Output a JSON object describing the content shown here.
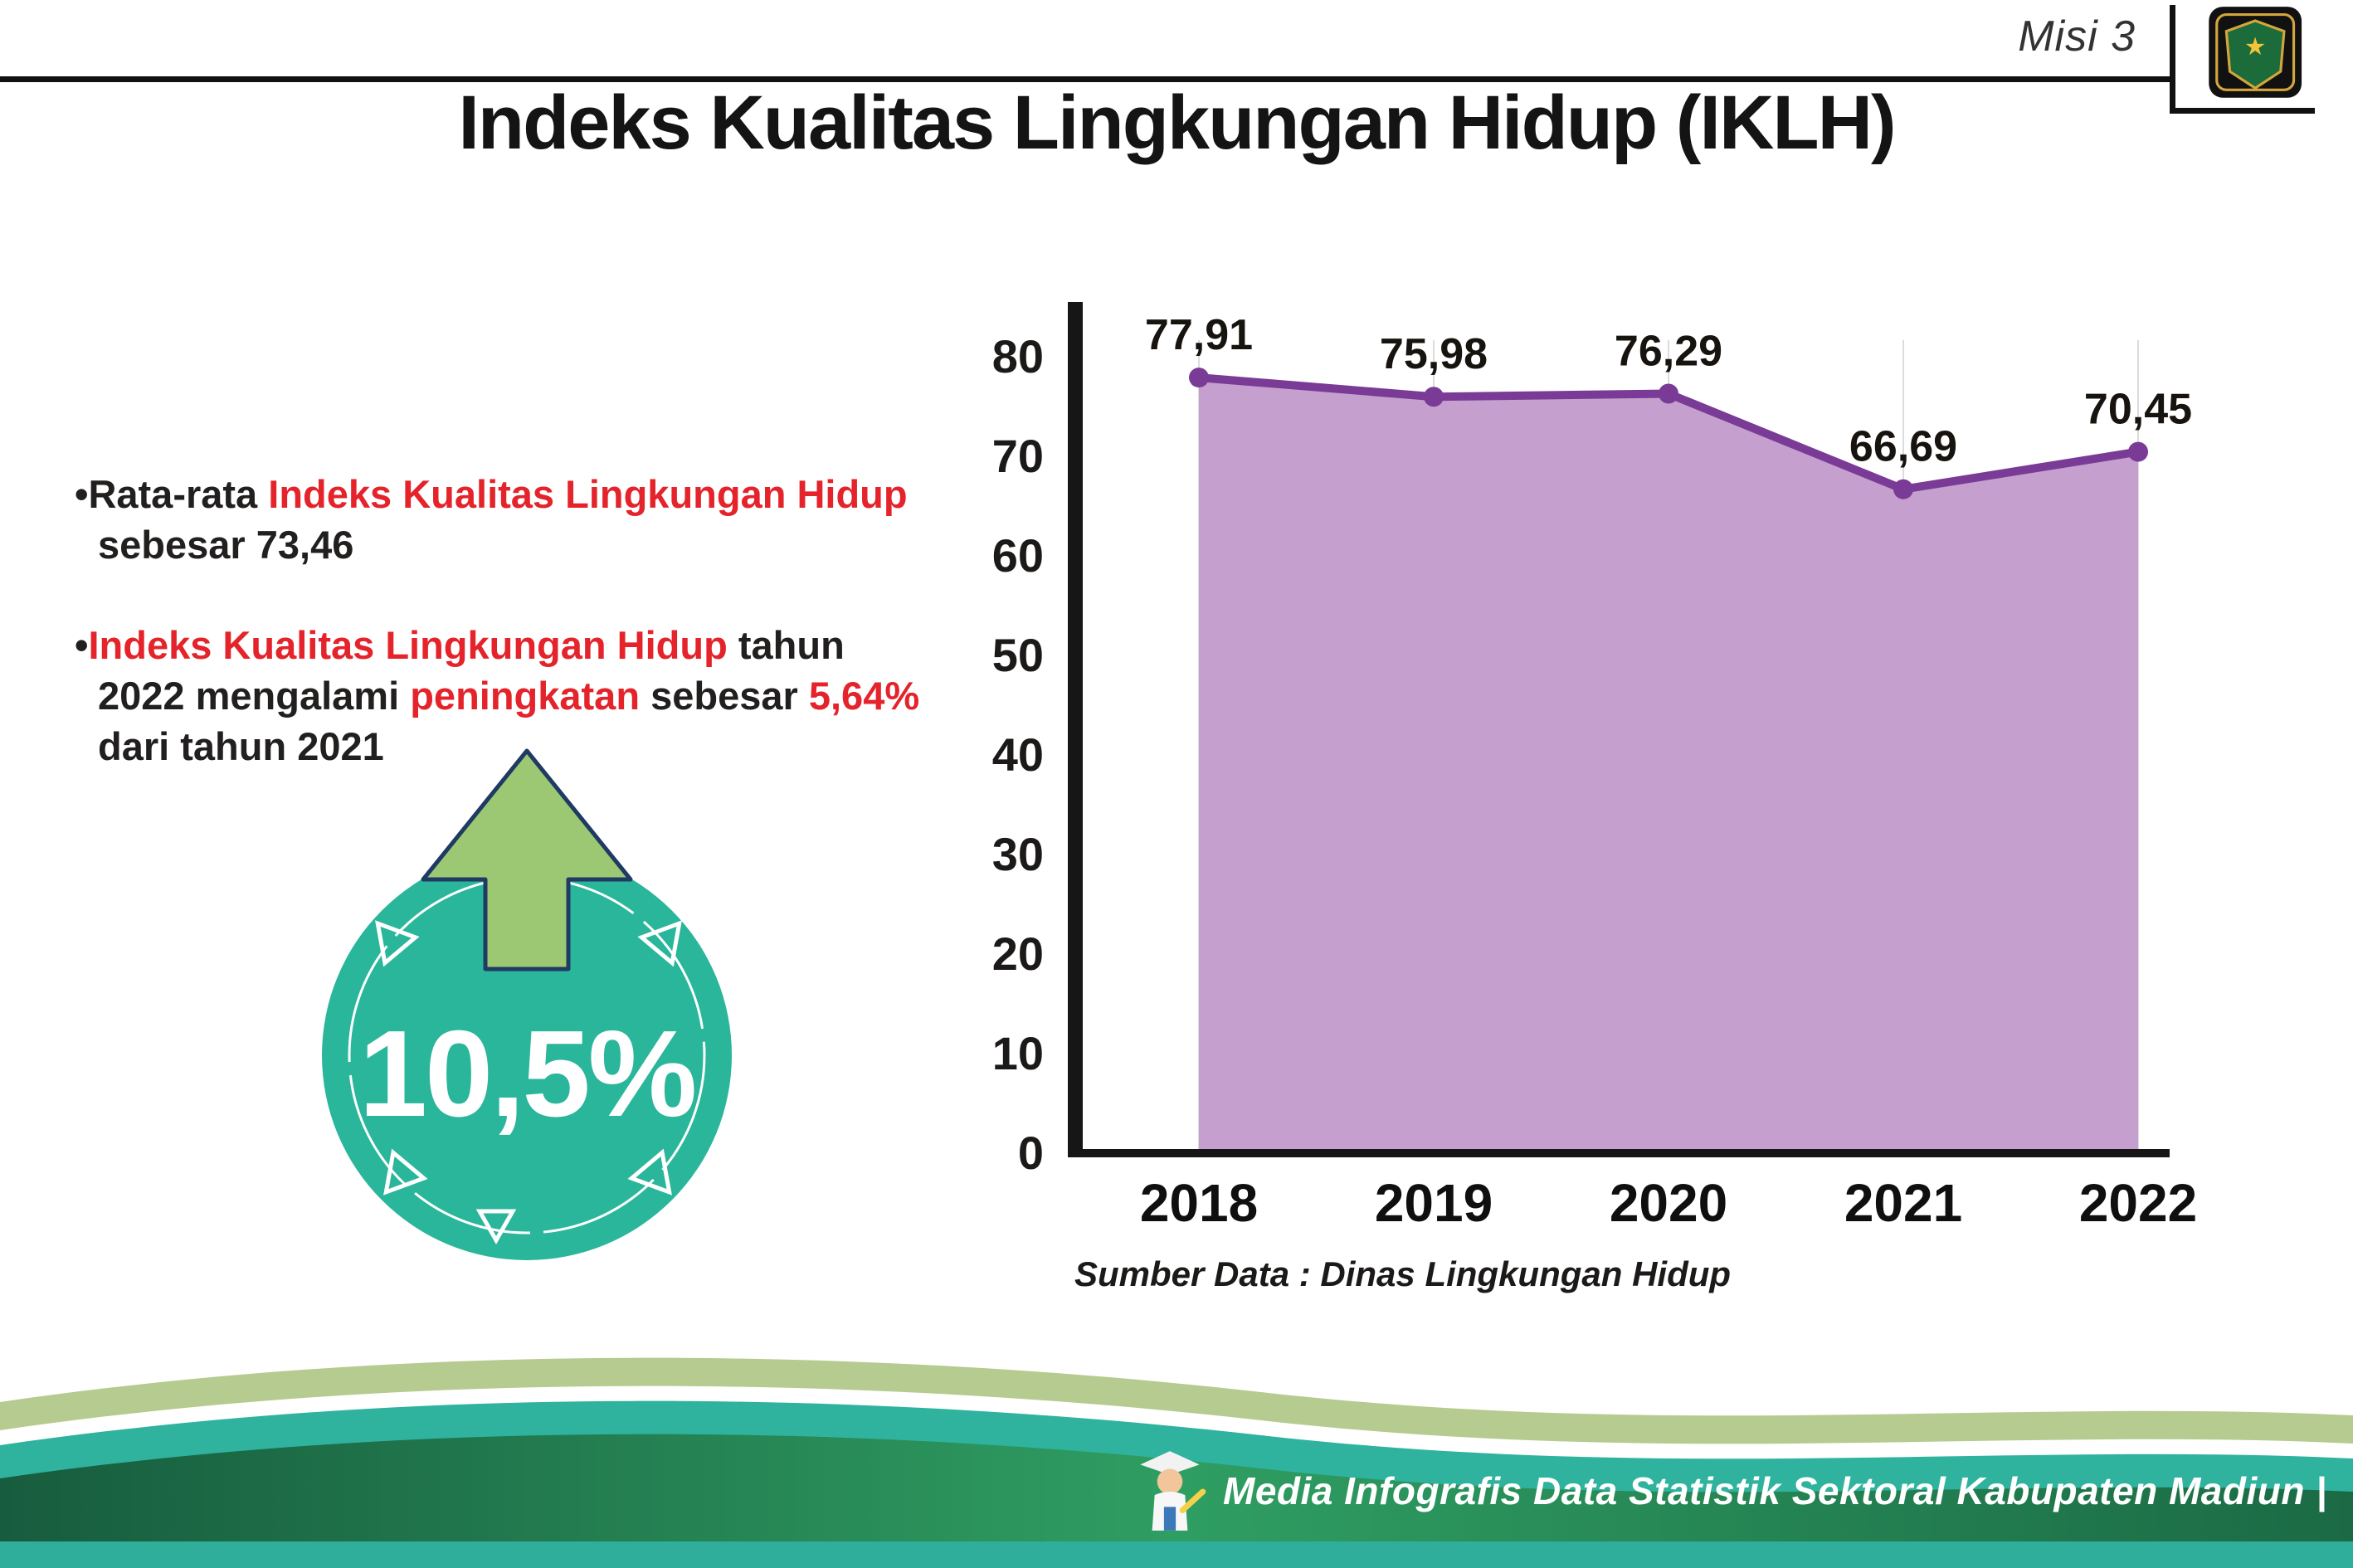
{
  "page": {
    "misi": "Misi 3",
    "title": "Indeks Kualitas Lingkungan Hidup (IKLH)"
  },
  "bullets": {
    "b1_pre": "•Rata-rata ",
    "b1_red": "Indeks Kualitas Lingkungan Hidup",
    "b1_post": " sebesar 73,46",
    "b2_bullet": "•",
    "b2_red1": "Indeks Kualitas Lingkungan Hidup",
    "b2_mid1": " tahun 2022 mengalami ",
    "b2_red2": "peningkatan",
    "b2_mid2": " sebesar ",
    "b2_red3": "5,64%",
    "b2_post": " dari tahun 2021"
  },
  "badge": {
    "value": "10,5%"
  },
  "chart_data": {
    "type": "area",
    "title": "Indeks Kualitas Lingkungan Hidup (IKLH)",
    "categories": [
      "2018",
      "2019",
      "2020",
      "2021",
      "2022"
    ],
    "values": [
      77.91,
      75.98,
      76.29,
      66.69,
      70.45
    ],
    "point_labels": [
      "77,91",
      "75,98",
      "76,29",
      "66,69",
      "70,45"
    ],
    "xlabel": "",
    "ylabel": "",
    "ylim": [
      0,
      80
    ],
    "ytick_step": 10,
    "grid": "vertical-light",
    "legend": "none",
    "line_color": "#7a3b96",
    "fill_color": "#c59fce",
    "marker_color": "#7a3b96"
  },
  "source_note": "Sumber Data : Dinas Lingkungan Hidup",
  "footer": {
    "credit": "Media Infografis Data Statistik Sektoral Kabupaten Madiun |"
  },
  "colors": {
    "accent_red": "#e4232b",
    "badge_teal": "#29b69a",
    "arrow_green": "#9dc873",
    "arrow_outline": "#1f3a63",
    "footer_sage": "#b6cb8f",
    "footer_teal": "#2fb39e",
    "footer_dark_green_1": "#175c3e",
    "footer_dark_green_2": "#2f9e62",
    "footer_dark_green_3": "#1b6a45",
    "footer_bottom_strip": "#2fae9b"
  }
}
